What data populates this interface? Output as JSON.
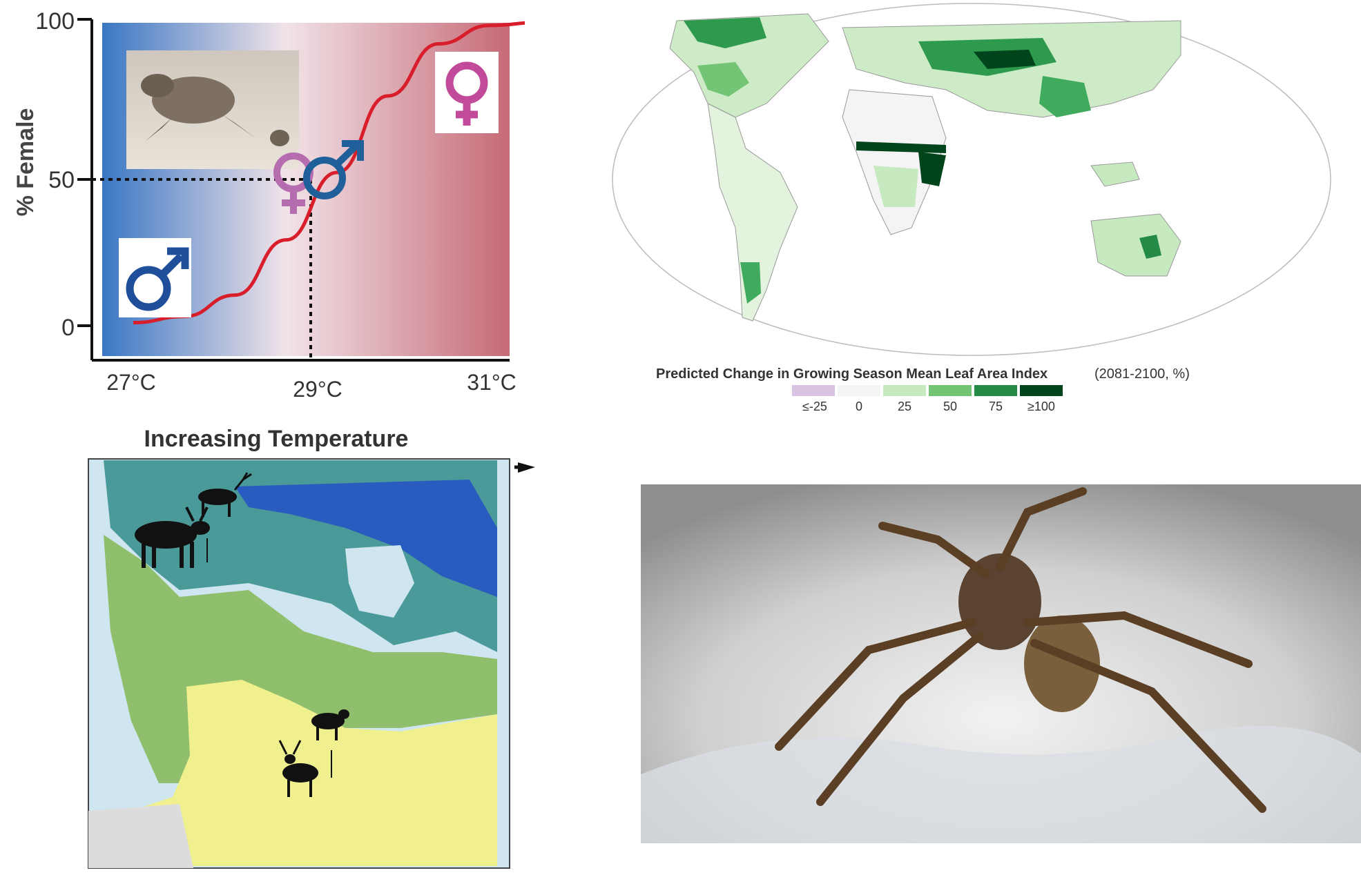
{
  "tsd_chart": {
    "ylabel": "% Female",
    "y_ticks": [
      "100",
      "50",
      "0"
    ],
    "x_ticks": [
      "27°C",
      "29°C",
      "31°C"
    ],
    "colors": {
      "male_side": "#3a77c4",
      "female_side": "#c66a76",
      "curve": "#d81e2a",
      "male_symbol": "#1f4f9a",
      "female_symbol": "#c24a9b"
    },
    "icons": [
      "turtle-hatchling-photo",
      "male-symbol-icon",
      "female-symbol-icon",
      "intersex-symbol-icon"
    ]
  },
  "chart_data": {
    "type": "line",
    "x": [
      27,
      27.5,
      28,
      28.5,
      29,
      29.5,
      30,
      30.5,
      31
    ],
    "values": [
      1,
      3,
      10,
      28,
      50,
      75,
      92,
      98,
      99
    ],
    "ylim": [
      0,
      100
    ],
    "xlim": [
      27,
      31
    ],
    "annotations": [
      "50% at 29°C"
    ]
  },
  "world_map": {
    "title": "Predicted Change in Growing Season Mean Leaf Area Index",
    "title_suffix": "(2081-2100, %)",
    "legend_labels": [
      "≤-25",
      "0",
      "25",
      "50",
      "75",
      "≥100"
    ],
    "legend_colors": [
      "#d9c3e2",
      "#f4f4f4",
      "#c7e9c0",
      "#74c476",
      "#238b45",
      "#00441b"
    ]
  },
  "canada_map": {
    "title": "Increasing Temperature",
    "zone_colors": [
      "#2a5bbf",
      "#4a9a9a",
      "#8fbf6d",
      "#f1f08e",
      "#cfe6f1",
      "#dcdcdc"
    ],
    "icons": [
      "caribou-icon",
      "moose-icon",
      "deer-icon",
      "moose-icon"
    ]
  },
  "spider_photo": {
    "icon": "wolf-spider-on-ice-photo"
  }
}
